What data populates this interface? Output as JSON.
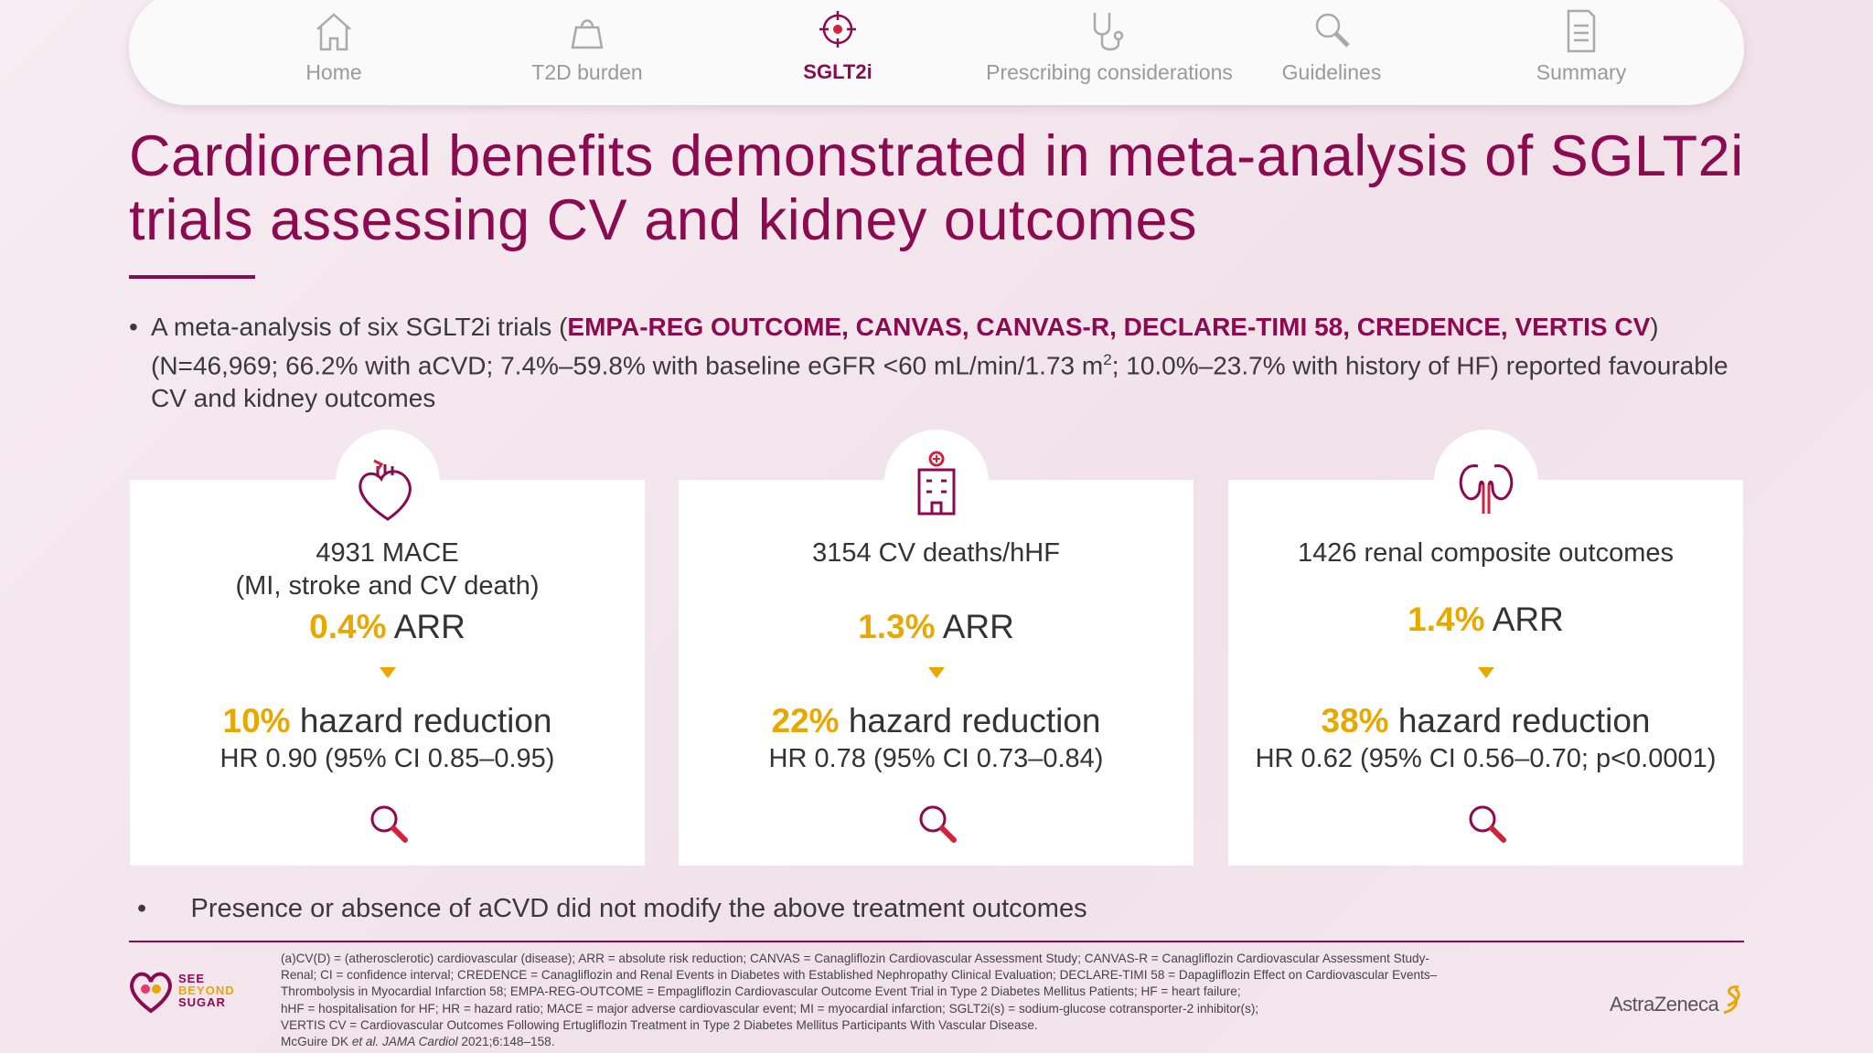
{
  "nav": [
    {
      "label": "Home"
    },
    {
      "label": "T2D burden"
    },
    {
      "label": "SGLT2i"
    },
    {
      "label": "Prescribing considerations"
    },
    {
      "label": "Guidelines"
    },
    {
      "label": "Summary"
    }
  ],
  "title": "Cardiorenal benefits demonstrated in meta-analysis of SGLT2i trials assessing CV and kidney outcomes",
  "bullets": [
    {
      "segments": [
        "A meta-analysis of six SGLT2i trials (",
        "EMPA-REG OUTCOME, CANVAS, CANVAS-R, DECLARE-TIMI 58, CREDENCE, VERTIS CV",
        ") (N=46,969; 66.2% with aCVD; 7.4%–59.8% with baseline eGFR <60 mL/min/1.73 m",
        "2",
        "; 10.0%–23.7% with history of HF) reported favourable CV and kidney outcomes"
      ]
    },
    {
      "segments": [
        "Presence or absence of aCVD did not modify the above treatment outcomes"
      ]
    }
  ],
  "cards": [
    {
      "events": "4931 MACE",
      "sub": "(MI, stroke and CV death)",
      "arr_value": "0.4%",
      "arr_label": "ARR",
      "hr_value": "10%",
      "hr_label": "hazard reduction",
      "hr_detail": "HR 0.90 (95% CI 0.85–0.95)"
    },
    {
      "events": "3154 CV deaths/hHF",
      "arr_value": "1.3%",
      "arr_label": "ARR",
      "hr_value": "22%",
      "hr_label": "hazard reduction",
      "hr_detail": "HR 0.78 (95% CI 0.73–0.84)"
    },
    {
      "events": "1426 renal composite outcomes",
      "arr_value": "1.4%",
      "arr_label": "ARR",
      "hr_value": "38%",
      "hr_label": "hazard reduction",
      "hr_detail": "HR 0.62 (95% CI 0.56–0.70; p<0.0001)"
    }
  ],
  "footnotes": [
    "(a)CV(D) = (atherosclerotic) cardiovascular (disease); ARR = absolute risk reduction; CANVAS = Canagliflozin Cardiovascular Assessment Study; CANVAS-R = Canagliflozin Cardiovascular Assessment Study-",
    "Renal; CI = confidence interval; CREDENCE = Canagliflozin and Renal Events in Diabetes with Established Nephropathy Clinical Evaluation; DECLARE-TIMI 58 = Dapagliflozin Effect on Cardiovascular Events–",
    "Thrombolysis in Myocardial Infarction 58; EMPA-REG-OUTCOME = Empagliflozin Cardiovascular Outcome Event Trial in Type 2 Diabetes Mellitus Patients; HF = heart failure;",
    "hHF = hospitalisation for HF; HR = hazard ratio; MACE = major adverse cardiovascular event; MI = myocardial infarction; SGLT2i(s) = sodium-glucose cotransporter-2 inhibitor(s);",
    "VERTIS CV = Cardiovascular Outcomes Following Ertugliflozin Treatment in Type 2 Diabetes Mellitus Participants With Vascular Disease."
  ],
  "reference": [
    "McGuire DK ",
    "et al. JAMA Cardiol",
    " 2021;6:148–158."
  ],
  "logos": {
    "left": [
      "SEE",
      "BEYOND",
      "SUGAR"
    ],
    "right": "AstraZeneca"
  }
}
